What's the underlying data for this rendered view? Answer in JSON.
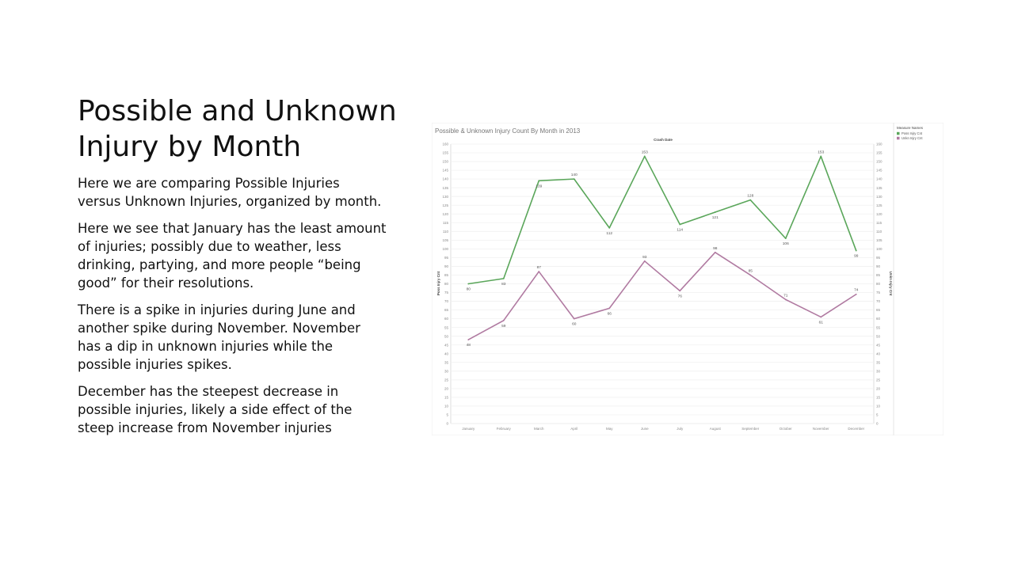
{
  "slide": {
    "title": "Possible and Unknown Injury by Month",
    "paragraphs": [
      "Here we are comparing Possible Injuries versus Unknown Injuries, organized by month.",
      "Here we see that January has the least amount of injuries; possibly due to weather, less drinking, partying, and more people “being good” for their resolutions.",
      "There is a spike in injuries during June and another spike during November.  November has a dip in unknown injuries while the possible injuries spikes.",
      "December has the steepest decrease  in possible injuries, likely a side effect of the steep increase from November injuries"
    ]
  },
  "chart_data": {
    "type": "line",
    "title": "Possible & Unknown Injury Count By Month in 2013",
    "xlabel": "Crash Date",
    "ylabel": "Poss Injry Cnt",
    "y2label": "Unkn Injry Cnt",
    "categories": [
      "January",
      "February",
      "March",
      "April",
      "May",
      "June",
      "July",
      "August",
      "September",
      "October",
      "November",
      "December"
    ],
    "ylim": [
      0,
      160
    ],
    "ytick_step": 5,
    "grid": true,
    "legend": {
      "title": "Measure Names",
      "placement": "right"
    },
    "series": [
      {
        "name": "Poss Injry Cnt",
        "color": "#5aa65a",
        "values": [
          80,
          83,
          139,
          140,
          112,
          153,
          114,
          121,
          128,
          106,
          153,
          99
        ]
      },
      {
        "name": "Unkn Injry Cnt",
        "color": "#b07aa1",
        "values": [
          48,
          59,
          87,
          60,
          66,
          93,
          76,
          98,
          85,
          71,
          61,
          74
        ]
      }
    ]
  }
}
